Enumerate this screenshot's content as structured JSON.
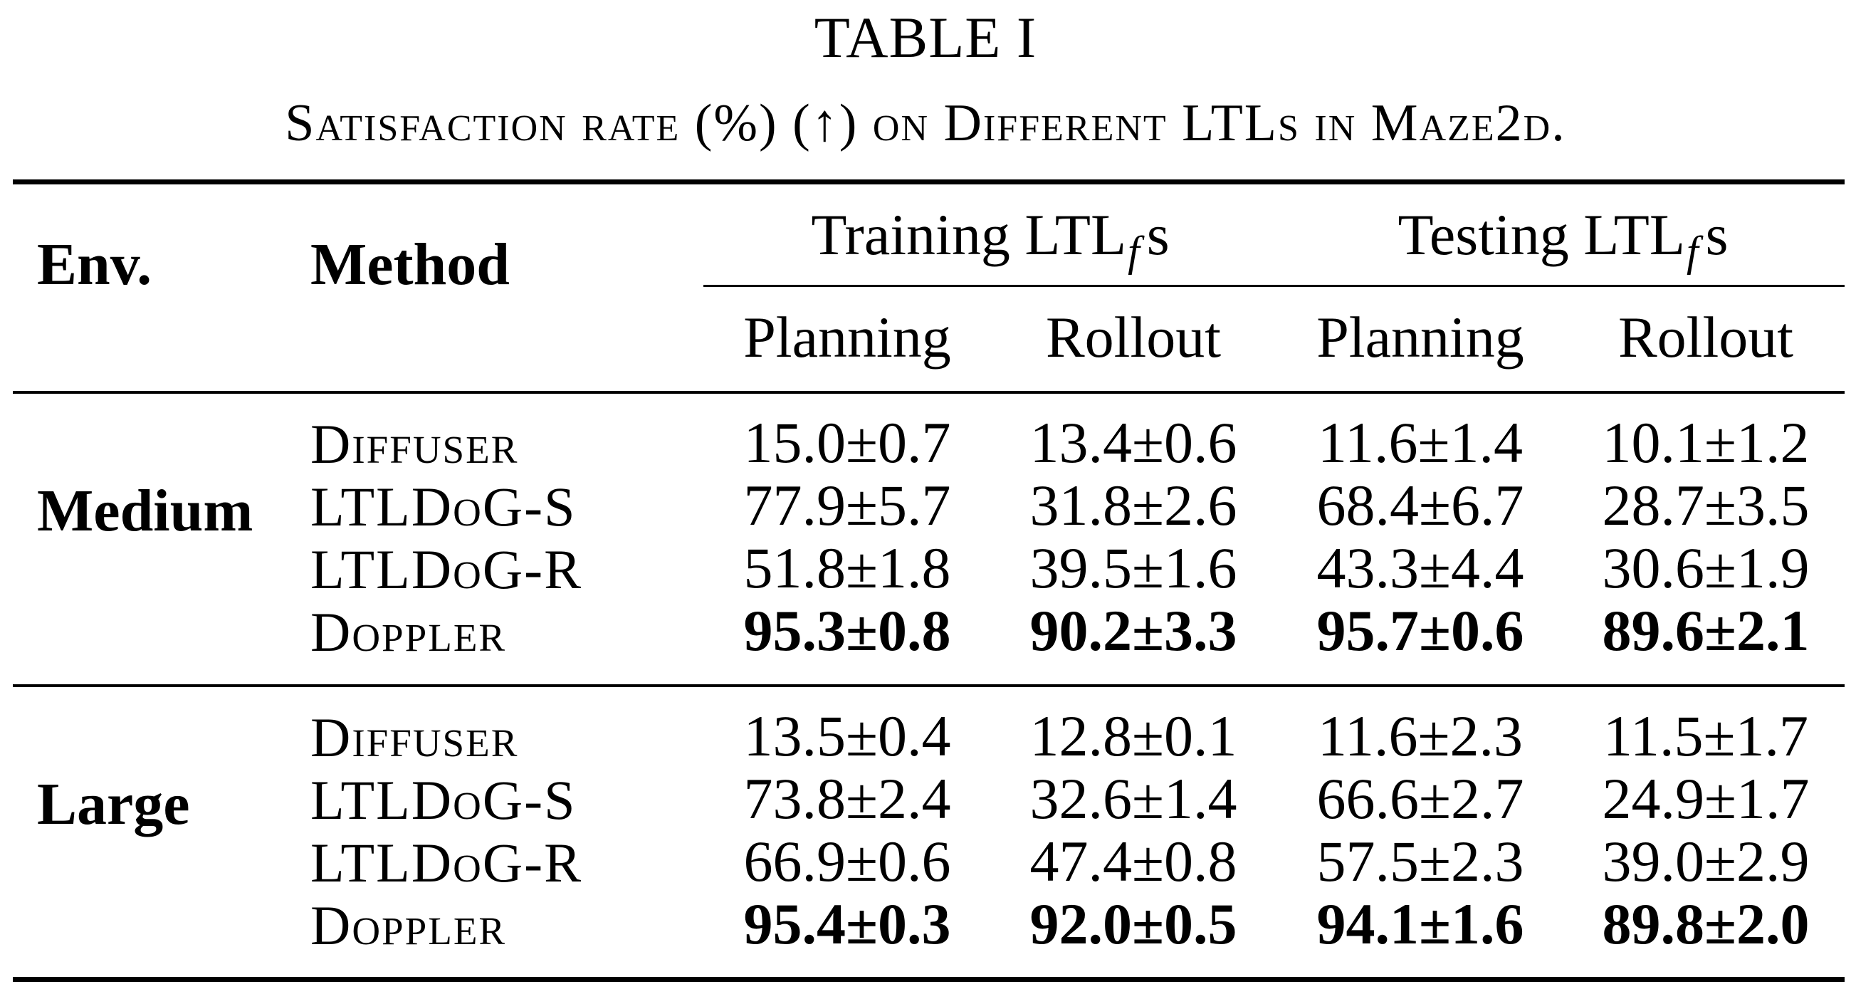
{
  "caption": {
    "title": "TABLE I",
    "subtitle": "Satisfaction rate (%) (↑) on Different LTLs in Maze2d."
  },
  "header": {
    "env": "Env.",
    "method": "Method",
    "group_training_prefix": "Training LTL",
    "group_testing_prefix": "Testing LTL",
    "group_subscript": "f",
    "group_suffix": "s",
    "col_planning_1": "Planning",
    "col_rollout_1": "Rollout",
    "col_planning_2": "Planning",
    "col_rollout_2": "Rollout"
  },
  "blocks": [
    {
      "env": "Medium",
      "rows": [
        {
          "method": "Diffuser",
          "values": [
            "15.0±0.7",
            "13.4±0.6",
            "11.6±1.4",
            "10.1±1.2"
          ],
          "best": false
        },
        {
          "method": "LTLDoG-S",
          "values": [
            "77.9±5.7",
            "31.8±2.6",
            "68.4±6.7",
            "28.7±3.5"
          ],
          "best": false
        },
        {
          "method": "LTLDoG-R",
          "values": [
            "51.8±1.8",
            "39.5±1.6",
            "43.3±4.4",
            "30.6±1.9"
          ],
          "best": false
        },
        {
          "method": "Doppler",
          "values": [
            "95.3±0.8",
            "90.2±3.3",
            "95.7±0.6",
            "89.6±2.1"
          ],
          "best": true
        }
      ]
    },
    {
      "env": "Large",
      "rows": [
        {
          "method": "Diffuser",
          "values": [
            "13.5±0.4",
            "12.8±0.1",
            "11.6±2.3",
            "11.5±1.7"
          ],
          "best": false
        },
        {
          "method": "LTLDoG-S",
          "values": [
            "73.8±2.4",
            "32.6±1.4",
            "66.6±2.7",
            "24.9±1.7"
          ],
          "best": false
        },
        {
          "method": "LTLDoG-R",
          "values": [
            "66.9±0.6",
            "47.4±0.8",
            "57.5±2.3",
            "39.0±2.9"
          ],
          "best": false
        },
        {
          "method": "Doppler",
          "values": [
            "95.4±0.3",
            "92.0±0.5",
            "94.1±1.6",
            "89.8±2.0"
          ],
          "best": true
        }
      ]
    }
  ]
}
